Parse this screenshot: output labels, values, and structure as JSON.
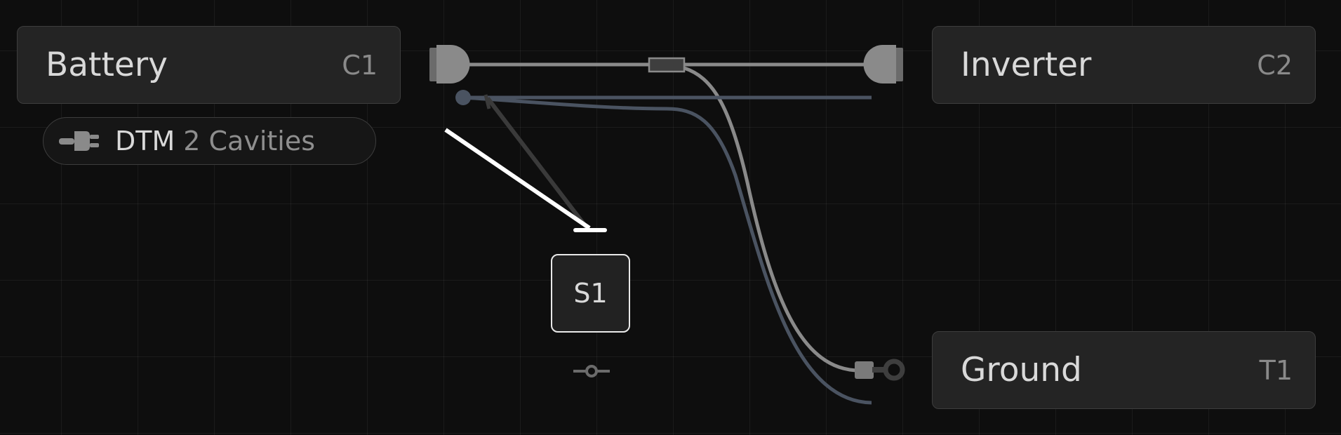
{
  "nodes": {
    "battery": {
      "title": "Battery",
      "ref": "C1"
    },
    "inverter": {
      "title": "Inverter",
      "ref": "C2"
    },
    "ground": {
      "title": "Ground",
      "ref": "T1"
    },
    "splice": {
      "label": "S1"
    }
  },
  "connector_info": {
    "name": "DTM",
    "cavities": "2 Cavities"
  },
  "colors": {
    "background": "#0e0e0e",
    "node_fill": "#242424",
    "wire_gray": "#8a8a8a",
    "wire_slate": "#4a5361",
    "wire_dark": "#3a3a3a",
    "wire_white": "#ffffff",
    "splice_border": "#e9e9e9"
  }
}
